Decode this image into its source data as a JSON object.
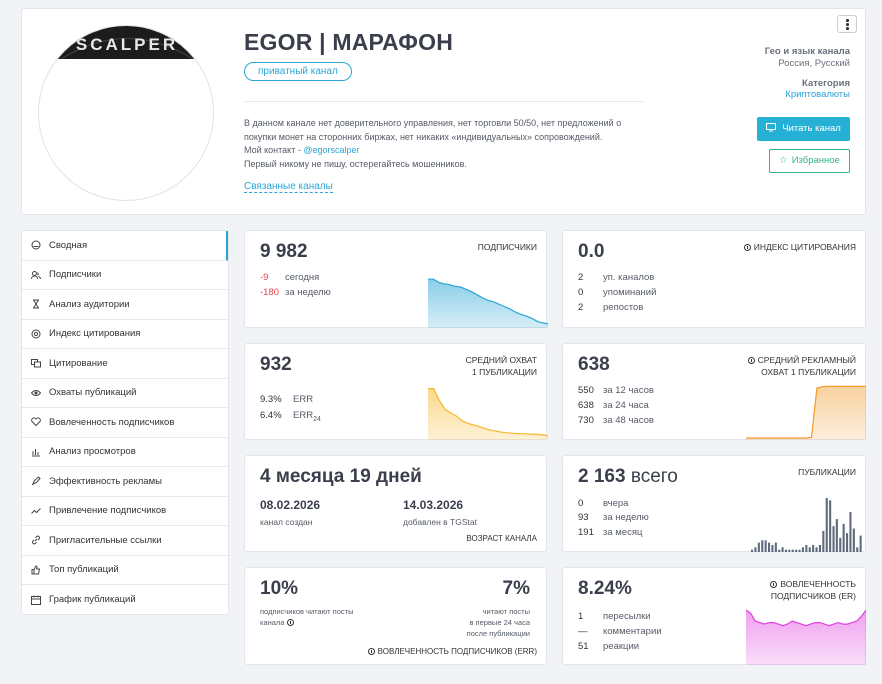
{
  "header": {
    "title": "EGOR | МАРАФОН",
    "badge": "приватный канал",
    "description_lines": [
      "В данном канале нет доверительного управления, нет торговли 50/50, нет предложений о",
      "покупки монет на сторонних биржах, нет никаких «индивидуальных» сопровождений."
    ],
    "contact_prefix": "Мой контакт - ",
    "contact_link": "@egorscalper",
    "warning": "Первый никому не пишу, остерегайтесь мошенников.",
    "related_link": "Связанные каналы",
    "avatar_text": "SCALPER",
    "geo_label": "Гео и язык канала",
    "geo_value": "Россия, Русский",
    "category_label": "Категория",
    "category_value": "Криптовалюты",
    "read_button": "Читать канал",
    "favorite_button": "Избранное"
  },
  "sidebar": {
    "items": [
      {
        "label": "Сводная",
        "icon": "dashboard-icon",
        "active": true
      },
      {
        "label": "Подписчики",
        "icon": "users-icon"
      },
      {
        "label": "Анализ аудитории",
        "icon": "hourglass-icon"
      },
      {
        "label": "Индекс цитирования",
        "icon": "at-icon"
      },
      {
        "label": "Цитирование",
        "icon": "quote-icon"
      },
      {
        "label": "Охваты публикаций",
        "icon": "eye-icon"
      },
      {
        "label": "Вовлеченность подписчиков",
        "icon": "heart-icon"
      },
      {
        "label": "Анализ просмотров",
        "icon": "bar-chart-icon"
      },
      {
        "label": "Эффективность рекламы",
        "icon": "rocket-icon"
      },
      {
        "label": "Привлечение подписчиков",
        "icon": "trend-icon"
      },
      {
        "label": "Пригласительные ссылки",
        "icon": "link-icon"
      },
      {
        "label": "Топ публикаций",
        "icon": "thumb-up-icon"
      },
      {
        "label": "График публикаций",
        "icon": "calendar-icon"
      }
    ]
  },
  "cards": {
    "subscribers": {
      "value": "9 982",
      "caption": "ПОДПИСЧИКИ",
      "today_value": "-9",
      "today_label": "сегодня",
      "week_value": "-180",
      "week_label": "за неделю",
      "color": "#2aa5d6"
    },
    "citation": {
      "value": "0.0",
      "caption": "ИНДЕКС ЦИТИРОВАНИЯ",
      "rows": [
        {
          "n": "2",
          "label": "уп. каналов"
        },
        {
          "n": "0",
          "label": "упоминаний"
        },
        {
          "n": "2",
          "label": "репостов"
        }
      ]
    },
    "reach": {
      "value": "932",
      "caption_line1": "СРЕДНИЙ ОХВАТ",
      "caption_line2": "1 ПУБЛИКАЦИИ",
      "err_value": "9.3%",
      "err_label": "ERR",
      "err24_value": "6.4%",
      "err24_label": "ERR",
      "err24_sub": "24",
      "color": "#f5b82e"
    },
    "ad_reach": {
      "value": "638",
      "caption_line1": "СРЕДНИЙ РЕКЛАМНЫЙ",
      "caption_line2": "ОХВАТ 1 ПУБЛИКАЦИИ",
      "rows": [
        {
          "n": "550",
          "label": "за 12 часов"
        },
        {
          "n": "638",
          "label": "за 24 часа"
        },
        {
          "n": "730",
          "label": "за 48 часов"
        }
      ],
      "color": "#f39a2b"
    },
    "age": {
      "value": "4 месяца 19 дней",
      "created_date": "08.02.2026",
      "created_label": "канал создан",
      "added_date": "14.03.2026",
      "added_label": "добавлен в TGStat",
      "footer": "ВОЗРАСТ КАНАЛА"
    },
    "posts": {
      "value": "2 163",
      "value_suffix": "всего",
      "caption": "ПУБЛИКАЦИИ",
      "rows": [
        {
          "n": "0",
          "label": "вчера"
        },
        {
          "n": "93",
          "label": "за неделю"
        },
        {
          "n": "191",
          "label": "за месяц"
        }
      ],
      "color": "#5f6b7d"
    },
    "err": {
      "left_value": "10%",
      "left_label_line1": "подписчиков читают посты",
      "left_label_line2": "канала",
      "right_value": "7%",
      "right_label_line1": "читают посты",
      "right_label_line2": "в первые 24 часа",
      "right_label_line3": "после публикации",
      "footer": "ВОВЛЕЧЕННОСТЬ ПОДПИСЧИКОВ (ERR)"
    },
    "er": {
      "value": "8.24%",
      "caption_line1": "ВОВЛЕЧЕННОСТЬ",
      "caption_line2": "ПОДПИСЧИКОВ (ER)",
      "rows": [
        {
          "n": "1",
          "label": "пересылки"
        },
        {
          "n": "—",
          "label": "комментарии"
        },
        {
          "n": "51",
          "label": "реакции"
        }
      ],
      "color": "#e040e0"
    }
  },
  "chart_data": [
    {
      "type": "area",
      "series": [
        {
          "values": [
            10040,
            10040,
            10036,
            10034,
            10033,
            10031,
            10030,
            10027,
            10024,
            10020,
            10016,
            10013,
            10011,
            10008,
            10005,
            10002,
            9998,
            9995,
            9993,
            9990,
            9986,
            9984,
            9983
          ]
        }
      ]
    },
    {
      "type": "area",
      "series": [
        {
          "values": [
            1850,
            1850,
            1620,
            1450,
            1380,
            1320,
            1230,
            1180,
            1150,
            1120,
            1080,
            1050,
            1030,
            1010,
            1000,
            990,
            985,
            980,
            975,
            970,
            960,
            945
          ]
        }
      ]
    },
    {
      "type": "area",
      "series": [
        {
          "values": [
            0,
            0,
            0,
            0,
            0,
            0,
            0,
            0,
            0,
            0,
            0,
            0,
            10,
            700,
            720,
            725,
            725,
            725,
            725,
            725,
            725,
            725,
            725
          ]
        }
      ]
    },
    {
      "type": "bar",
      "series": [
        {
          "values": [
            1,
            2,
            4,
            5,
            5,
            4,
            3,
            4,
            1,
            2,
            1,
            1,
            1,
            1,
            1,
            2,
            3,
            2,
            3,
            2,
            3,
            9,
            23,
            22,
            11,
            14,
            6,
            12,
            8,
            17,
            10,
            2,
            7
          ]
        }
      ]
    },
    {
      "type": "area",
      "series": [
        {
          "values": [
            8.9,
            8.8,
            8.55,
            8.5,
            8.45,
            8.5,
            8.5,
            8.45,
            8.4,
            8.45,
            8.55,
            8.5,
            8.45,
            8.4,
            8.45,
            8.5,
            8.5,
            8.45,
            8.4,
            8.45,
            8.5,
            8.45,
            8.45,
            8.5,
            8.55,
            8.7,
            8.9
          ]
        }
      ]
    }
  ]
}
